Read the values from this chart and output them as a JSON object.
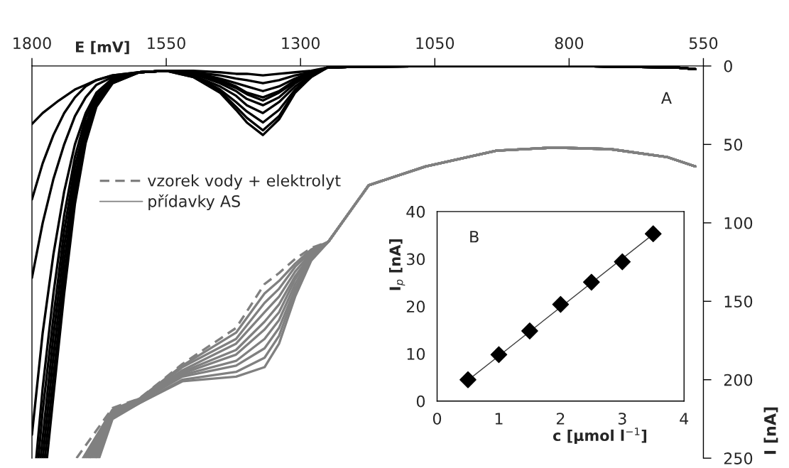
{
  "chart_data": [
    {
      "type": "line",
      "xlabel": "E [mV]",
      "ylabel": "I [nA]",
      "xlim": [
        1800,
        550
      ],
      "xticks": [
        1800,
        1550,
        1300,
        1050,
        800,
        550
      ],
      "ylim": [
        250,
        0
      ],
      "yticks": [
        0,
        50,
        100,
        150,
        200,
        250
      ],
      "grid": false,
      "marker": "none",
      "legend": "top left",
      "annotations": [
        "A"
      ],
      "series": [
        {
          "color": "#000000",
          "x": [
            1800,
            1780,
            1750,
            1720,
            1700,
            1680,
            1650,
            1600,
            1550,
            1500,
            1450,
            1420,
            1400,
            1370,
            1340,
            1310,
            1280,
            1250,
            1200,
            1000,
            800,
            600,
            565
          ],
          "values": [
            37,
            30,
            22,
            15,
            12,
            9,
            6,
            4,
            3,
            3,
            4,
            5,
            5,
            6,
            5,
            4,
            3,
            1,
            0.5,
            0,
            0,
            1,
            2
          ]
        },
        {
          "color": "#000000",
          "x": [
            1800,
            1780,
            1760,
            1740,
            1720,
            1700,
            1680,
            1650,
            1600,
            1550,
            1500,
            1450,
            1420,
            1400,
            1370,
            1340,
            1310,
            1280,
            1250,
            1200,
            1000,
            800,
            600,
            565
          ],
          "values": [
            85,
            62,
            44,
            30,
            20,
            13,
            9,
            6,
            4,
            3,
            4,
            6,
            8,
            9,
            11,
            9,
            6,
            4,
            1,
            0.5,
            0,
            0,
            1,
            2
          ]
        },
        {
          "color": "#000000",
          "x": [
            1800,
            1780,
            1760,
            1740,
            1720,
            1700,
            1680,
            1650,
            1600,
            1550,
            1500,
            1450,
            1420,
            1400,
            1370,
            1340,
            1310,
            1280,
            1250,
            1200,
            1000,
            800,
            600,
            565
          ],
          "values": [
            135,
            100,
            72,
            50,
            32,
            20,
            12,
            7,
            4,
            3,
            4,
            8,
            11,
            13,
            16,
            13,
            8,
            4,
            1,
            0.5,
            0,
            0,
            1,
            2
          ]
        },
        {
          "color": "#000000",
          "x": [
            1800,
            1780,
            1760,
            1740,
            1720,
            1700,
            1680,
            1650,
            1600,
            1550,
            1500,
            1450,
            1420,
            1400,
            1370,
            1340,
            1310,
            1280,
            1250,
            1200,
            1000,
            800,
            600,
            565
          ],
          "values": [
            235,
            170,
            120,
            80,
            50,
            30,
            17,
            8,
            4,
            3,
            5,
            9,
            13,
            17,
            20,
            16,
            9,
            5,
            1,
            0.5,
            0,
            0,
            1,
            2
          ]
        },
        {
          "color": "#000000",
          "x": [
            1792,
            1780,
            1760,
            1740,
            1720,
            1700,
            1680,
            1650,
            1600,
            1550,
            1500,
            1450,
            1420,
            1400,
            1370,
            1340,
            1310,
            1280,
            1250,
            1200,
            1000,
            800,
            600,
            565
          ],
          "values": [
            250,
            205,
            145,
            95,
            58,
            33,
            19,
            9,
            4,
            3,
            5,
            10,
            14,
            18,
            22,
            17,
            10,
            5,
            1,
            0.5,
            0,
            0,
            1,
            2
          ]
        },
        {
          "color": "#000000",
          "x": [
            1788,
            1780,
            1760,
            1740,
            1720,
            1700,
            1680,
            1650,
            1600,
            1550,
            1500,
            1450,
            1420,
            1400,
            1370,
            1340,
            1310,
            1280,
            1250,
            1200,
            1000,
            800,
            600,
            565
          ],
          "values": [
            250,
            220,
            160,
            105,
            64,
            37,
            20,
            9,
            4,
            3,
            5,
            11,
            16,
            21,
            25,
            20,
            11,
            5,
            1,
            0.5,
            0,
            0,
            1,
            2
          ]
        },
        {
          "color": "#000000",
          "x": [
            1784,
            1760,
            1740,
            1720,
            1700,
            1680,
            1650,
            1600,
            1550,
            1500,
            1450,
            1420,
            1400,
            1370,
            1340,
            1310,
            1280,
            1250,
            1200,
            1000,
            800,
            600,
            565
          ],
          "values": [
            250,
            172,
            115,
            70,
            40,
            22,
            10,
            4,
            3,
            6,
            13,
            19,
            25,
            30,
            23,
            13,
            6,
            1,
            0.5,
            0,
            0,
            1,
            2
          ]
        },
        {
          "color": "#000000",
          "x": [
            1780,
            1760,
            1740,
            1720,
            1700,
            1680,
            1650,
            1600,
            1550,
            1500,
            1450,
            1420,
            1400,
            1370,
            1340,
            1310,
            1280,
            1250,
            1200,
            1000,
            800,
            600,
            565
          ],
          "values": [
            250,
            185,
            125,
            76,
            43,
            23,
            10,
            4,
            3,
            6,
            15,
            23,
            29,
            36,
            28,
            15,
            6,
            1,
            0.5,
            0,
            0,
            1,
            2
          ]
        },
        {
          "color": "#000000",
          "x": [
            1776,
            1760,
            1740,
            1720,
            1700,
            1680,
            1650,
            1600,
            1550,
            1500,
            1450,
            1420,
            1400,
            1370,
            1340,
            1310,
            1280,
            1250,
            1200,
            1000,
            800,
            600,
            565
          ],
          "values": [
            250,
            198,
            135,
            82,
            46,
            25,
            11,
            4,
            3,
            7,
            16,
            26,
            33,
            41,
            32,
            16,
            7,
            1,
            0.5,
            0,
            0,
            1,
            2
          ]
        },
        {
          "color": "#000000",
          "x": [
            1772,
            1760,
            1740,
            1720,
            1700,
            1680,
            1650,
            1600,
            1550,
            1500,
            1450,
            1420,
            1400,
            1370,
            1340,
            1310,
            1280,
            1250,
            1200,
            1000,
            800,
            600,
            565
          ],
          "values": [
            250,
            210,
            145,
            88,
            49,
            26,
            11,
            4,
            3,
            7,
            17,
            28,
            36,
            44,
            34,
            17,
            7,
            1,
            0.5,
            0,
            0,
            1,
            2
          ]
        },
        {
          "name": "vzorek vody + elektrolyt",
          "color": "#808080",
          "line_style": "dashed",
          "x": [
            1717,
            1650,
            1600,
            1520,
            1420,
            1367,
            1340,
            1310,
            1280,
            1248,
            1173,
            1067,
            935,
            829,
            723,
            618,
            565
          ],
          "values": [
            250,
            218,
            212,
            190,
            167,
            139,
            132,
            123,
            116,
            112,
            76,
            64,
            54,
            52,
            53,
            58,
            64
          ]
        },
        {
          "name": "přídavky AS",
          "color": "#808080",
          "x": [
            1705,
            1650,
            1600,
            1520,
            1420,
            1367,
            1340,
            1310,
            1280,
            1248,
            1173,
            1067,
            935,
            829,
            723,
            618,
            565
          ],
          "values": [
            250,
            219,
            212,
            191,
            170,
            145,
            137,
            126,
            117,
            112,
            76,
            64,
            54,
            52,
            53,
            58,
            64
          ]
        },
        {
          "color": "#808080",
          "x": [
            1701,
            1650,
            1600,
            1520,
            1420,
            1367,
            1340,
            1310,
            1280,
            1248,
            1173,
            1067,
            935,
            829,
            723,
            618,
            565
          ],
          "values": [
            250,
            220,
            213,
            192,
            174,
            151,
            142,
            128,
            118,
            112,
            76,
            64,
            54,
            52,
            53,
            58,
            64
          ]
        },
        {
          "color": "#808080",
          "x": [
            1697,
            1650,
            1600,
            1520,
            1420,
            1367,
            1340,
            1310,
            1280,
            1248,
            1173,
            1067,
            935,
            829,
            723,
            618,
            565
          ],
          "values": [
            250,
            221,
            213,
            194,
            177,
            157,
            147,
            131,
            119,
            112,
            76,
            64,
            54,
            52,
            53,
            58,
            64
          ]
        },
        {
          "color": "#808080",
          "x": [
            1693,
            1650,
            1600,
            1520,
            1420,
            1367,
            1340,
            1310,
            1280,
            1248,
            1173,
            1067,
            935,
            829,
            723,
            618,
            565
          ],
          "values": [
            250,
            222,
            213,
            195,
            181,
            163,
            152,
            134,
            120,
            112,
            76,
            64,
            54,
            52,
            53,
            58,
            64
          ]
        },
        {
          "color": "#808080",
          "x": [
            1690,
            1650,
            1600,
            1520,
            1420,
            1367,
            1340,
            1310,
            1280,
            1248,
            1173,
            1067,
            935,
            829,
            723,
            618,
            565
          ],
          "values": [
            250,
            222,
            214,
            196,
            184,
            168,
            157,
            136,
            120,
            112,
            76,
            64,
            54,
            52,
            53,
            58,
            64
          ]
        },
        {
          "color": "#808080",
          "x": [
            1686,
            1650,
            1600,
            1520,
            1420,
            1367,
            1340,
            1310,
            1280,
            1248,
            1173,
            1067,
            935,
            829,
            723,
            618,
            565
          ],
          "values": [
            250,
            223,
            214,
            197,
            188,
            174,
            162,
            139,
            121,
            112,
            76,
            64,
            54,
            52,
            53,
            58,
            64
          ]
        },
        {
          "color": "#808080",
          "x": [
            1682,
            1650,
            1600,
            1520,
            1420,
            1367,
            1340,
            1310,
            1280,
            1248,
            1173,
            1067,
            935,
            829,
            723,
            618,
            565
          ],
          "values": [
            250,
            224,
            214,
            198,
            191,
            180,
            167,
            142,
            122,
            112,
            76,
            64,
            54,
            52,
            53,
            58,
            64
          ]
        },
        {
          "color": "#808080",
          "x": [
            1679,
            1650,
            1600,
            1520,
            1420,
            1367,
            1340,
            1310,
            1280,
            1248,
            1173,
            1067,
            935,
            829,
            723,
            618,
            565
          ],
          "values": [
            250,
            224,
            215,
            200,
            195,
            186,
            172,
            144,
            123,
            112,
            76,
            64,
            54,
            52,
            53,
            58,
            64
          ]
        },
        {
          "color": "#808080",
          "x": [
            1675,
            1650,
            1600,
            1520,
            1420,
            1367,
            1340,
            1310,
            1280,
            1248,
            1173,
            1067,
            935,
            829,
            723,
            618,
            565
          ],
          "values": [
            250,
            225,
            215,
            201,
            198,
            192,
            177,
            147,
            124,
            112,
            76,
            64,
            54,
            52,
            53,
            58,
            64
          ]
        }
      ]
    },
    {
      "type": "scatter",
      "xlabel": "c [µmol l$^{−1}$]",
      "ylabel": "I$_{p}$ [nA]",
      "xlim": [
        0,
        4
      ],
      "xticks": [
        0,
        1,
        2,
        3,
        4
      ],
      "ylim": [
        0,
        40
      ],
      "yticks": [
        0,
        10,
        20,
        30,
        40
      ],
      "grid": false,
      "annotations": [
        "B"
      ],
      "series": [
        {
          "color": "#000000",
          "marker": "diamond",
          "x": [
            0.5,
            1,
            1.5,
            2,
            2.5,
            3,
            3.5
          ],
          "values": [
            4.5,
            9.8,
            14.8,
            20.4,
            25.1,
            29.4,
            35.3
          ]
        },
        {
          "type": "line",
          "color": "#404040",
          "x": [
            0.5,
            3.5
          ],
          "values": [
            4.4,
            35.2
          ]
        }
      ]
    }
  ]
}
